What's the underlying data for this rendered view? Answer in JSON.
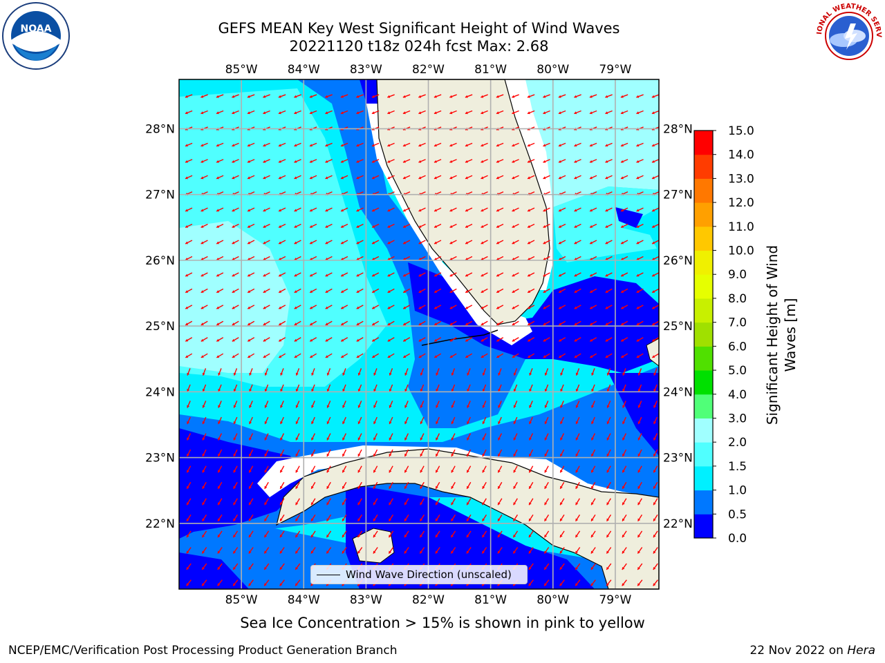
{
  "title": {
    "line1": "GEFS MEAN Key West Significant Height of Wind Waves",
    "line2": "20221120 t18z 024h fcst   Max: 2.68"
  },
  "map": {
    "type": "contour-map",
    "lon_range": [
      -86.0,
      -78.3
    ],
    "lat_range": [
      21.0,
      28.75
    ],
    "lon_ticks": [
      "85°W",
      "84°W",
      "83°W",
      "82°W",
      "81°W",
      "80°W",
      "79°W"
    ],
    "lat_ticks": [
      "28°N",
      "27°N",
      "26°N",
      "25°N",
      "24°N",
      "23°N",
      "22°N"
    ],
    "grid": true,
    "legend_placement": "bottom-center",
    "legend_label": "Wind Wave Direction (unscaled)",
    "arrow_color": "#ff0000",
    "land_color": "#efeedd"
  },
  "colorbar": {
    "label": "Significant Height of Wind Waves [m]",
    "tick_labels": [
      "15.0",
      "14.0",
      "13.0",
      "12.0",
      "11.0",
      "10.0",
      "9.0",
      "8.0",
      "7.0",
      "6.0",
      "5.0",
      "4.0",
      "3.0",
      "2.0",
      "1.5",
      "1.0",
      "0.5",
      "0.0"
    ],
    "bins": [
      {
        "from": 0.0,
        "to": 0.5,
        "color": "#0000ff"
      },
      {
        "from": 0.5,
        "to": 1.0,
        "color": "#0078ff"
      },
      {
        "from": 1.0,
        "to": 1.5,
        "color": "#00f0ff"
      },
      {
        "from": 1.5,
        "to": 2.0,
        "color": "#50ffff"
      },
      {
        "from": 2.0,
        "to": 3.0,
        "color": "#a0ffff"
      },
      {
        "from": 3.0,
        "to": 4.0,
        "color": "#50ff78"
      },
      {
        "from": 4.0,
        "to": 5.0,
        "color": "#00e000"
      },
      {
        "from": 5.0,
        "to": 6.0,
        "color": "#50e000"
      },
      {
        "from": 6.0,
        "to": 7.0,
        "color": "#a0e000"
      },
      {
        "from": 7.0,
        "to": 8.0,
        "color": "#c8f000"
      },
      {
        "from": 8.0,
        "to": 9.0,
        "color": "#e6ff00"
      },
      {
        "from": 9.0,
        "to": 10.0,
        "color": "#f0f000"
      },
      {
        "from": 10.0,
        "to": 11.0,
        "color": "#ffc800"
      },
      {
        "from": 11.0,
        "to": 12.0,
        "color": "#ffa000"
      },
      {
        "from": 12.0,
        "to": 13.0,
        "color": "#ff7800"
      },
      {
        "from": 13.0,
        "to": 14.0,
        "color": "#ff3c00"
      },
      {
        "from": 14.0,
        "to": 15.0,
        "color": "#ff0000"
      }
    ]
  },
  "note": "Sea Ice Concentration > 15% is shown in pink to yellow",
  "footer": {
    "left": "NCEP/EMC/Verification Post Processing Product Generation Branch",
    "date": "22 Nov 2022 on ",
    "machine": "Hera"
  },
  "logos": {
    "left": {
      "name": "noaa-logo",
      "text": "NOAA"
    },
    "right": {
      "name": "nws-logo",
      "text": "NATIONAL WEATHER SERVICE"
    }
  }
}
